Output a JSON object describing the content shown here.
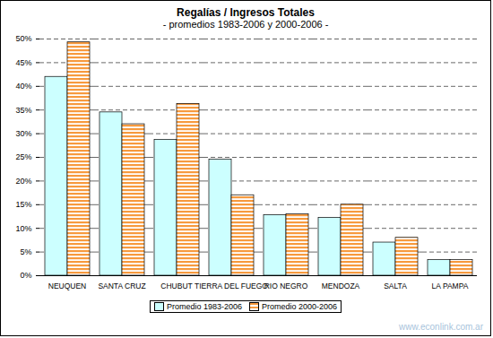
{
  "chart_data": {
    "type": "bar",
    "title": "Regalías / Ingresos Totales",
    "subtitle": "- promedios 1983-2006 y 2000-2006 -",
    "categories": [
      "NEUQUEN",
      "SANTA CRUZ",
      "CHUBUT",
      "TIERRA DEL FUEGO",
      "RIO NEGRO",
      "MENDOZA",
      "SALTA",
      "LA PAMPA"
    ],
    "series": [
      {
        "name": "Promedio 1983-2006",
        "color": "#ccffff",
        "values": [
          42,
          34.5,
          28.7,
          24.5,
          12.8,
          12.2,
          7,
          3.3
        ]
      },
      {
        "name": "Promedio 2000-2006",
        "color": "#f79a3e",
        "values": [
          49.3,
          32,
          36.3,
          17,
          13,
          15,
          8,
          3.3
        ]
      }
    ],
    "ylim": [
      0,
      50
    ],
    "yticks": [
      {
        "value": 0,
        "label": "0%"
      },
      {
        "value": 5,
        "label": "5%"
      },
      {
        "value": 10,
        "label": "10%"
      },
      {
        "value": 15,
        "label": "15%"
      },
      {
        "value": 20,
        "label": "20%"
      },
      {
        "value": 25,
        "label": "25%"
      },
      {
        "value": 30,
        "label": "30%"
      },
      {
        "value": 35,
        "label": "35%"
      },
      {
        "value": 40,
        "label": "40%"
      },
      {
        "value": 45,
        "label": "45%"
      },
      {
        "value": 50,
        "label": "50%"
      }
    ],
    "grid": true,
    "legend": "bottom",
    "source": "www.econlink.com.ar"
  }
}
